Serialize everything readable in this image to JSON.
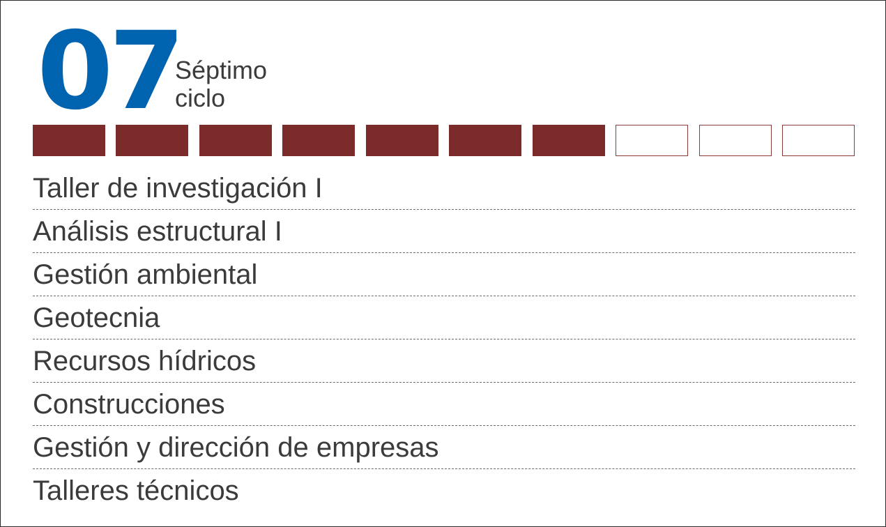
{
  "cycle": {
    "number": "07",
    "label_line1": "Séptimo",
    "label_line2": "ciclo"
  },
  "progress": {
    "completed": 7,
    "total": 10
  },
  "colors": {
    "number": "#0063b0",
    "progress_filled": "#7b2c2a",
    "text": "#3b3b3b"
  },
  "courses": [
    "Taller de investigación I",
    "Análisis estructural I",
    "Gestión ambiental",
    "Geotecnia",
    "Recursos hídricos",
    "Construcciones",
    "Gestión y dirección de empresas",
    "Talleres técnicos"
  ]
}
